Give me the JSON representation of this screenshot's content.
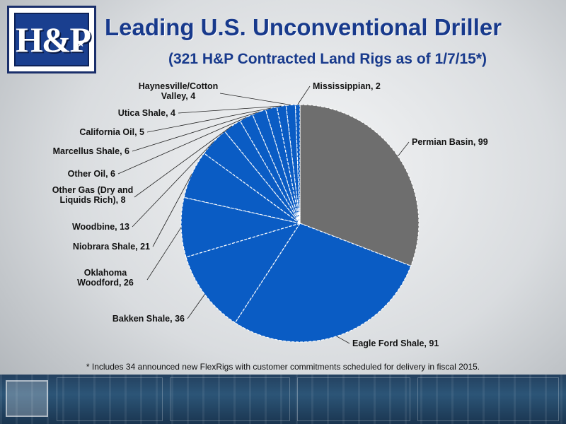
{
  "logo": {
    "text": "H&P"
  },
  "title": "Leading U.S. Unconventional Driller",
  "subtitle": "(321 H&P Contracted Land Rigs as of 1/7/15*)",
  "footnote": "* Includes 34 announced new FlexRigs with customer commitments scheduled for delivery in fiscal 2015.",
  "colors": {
    "highlight": "#6e6e6e",
    "main": "#0a5cc4",
    "title": "#183a8c",
    "leader": "#222222"
  },
  "chart_data": {
    "type": "pie",
    "title": "(321 H&P Contracted Land Rigs as of 1/7/15*)",
    "start": "12 o'clock",
    "direction": "clockwise",
    "slices": [
      {
        "label": [
          "Permian Basin, 99"
        ],
        "value": 99,
        "highlight": true
      },
      {
        "label": [
          "Eagle Ford Shale, 91"
        ],
        "value": 91
      },
      {
        "label": [
          "Bakken Shale, 36"
        ],
        "value": 36
      },
      {
        "label": [
          "Oklahoma",
          "Woodford, 26"
        ],
        "value": 26
      },
      {
        "label": [
          "Niobrara Shale, 21"
        ],
        "value": 21
      },
      {
        "label": [
          "Woodbine, 13"
        ],
        "value": 13
      },
      {
        "label": [
          "Other Gas (Dry and",
          "Liquids Rich), 8"
        ],
        "value": 8
      },
      {
        "label": [
          "Other Oil, 6"
        ],
        "value": 6
      },
      {
        "label": [
          "Marcellus Shale, 6"
        ],
        "value": 6
      },
      {
        "label": [
          "California Oil, 5"
        ],
        "value": 5
      },
      {
        "label": [
          "Utica Shale, 4"
        ],
        "value": 4
      },
      {
        "label": [
          "Haynesville/Cotton",
          "Valley, 4"
        ],
        "value": 4
      },
      {
        "label": [
          "Mississippian, 2"
        ],
        "value": 2
      }
    ]
  }
}
